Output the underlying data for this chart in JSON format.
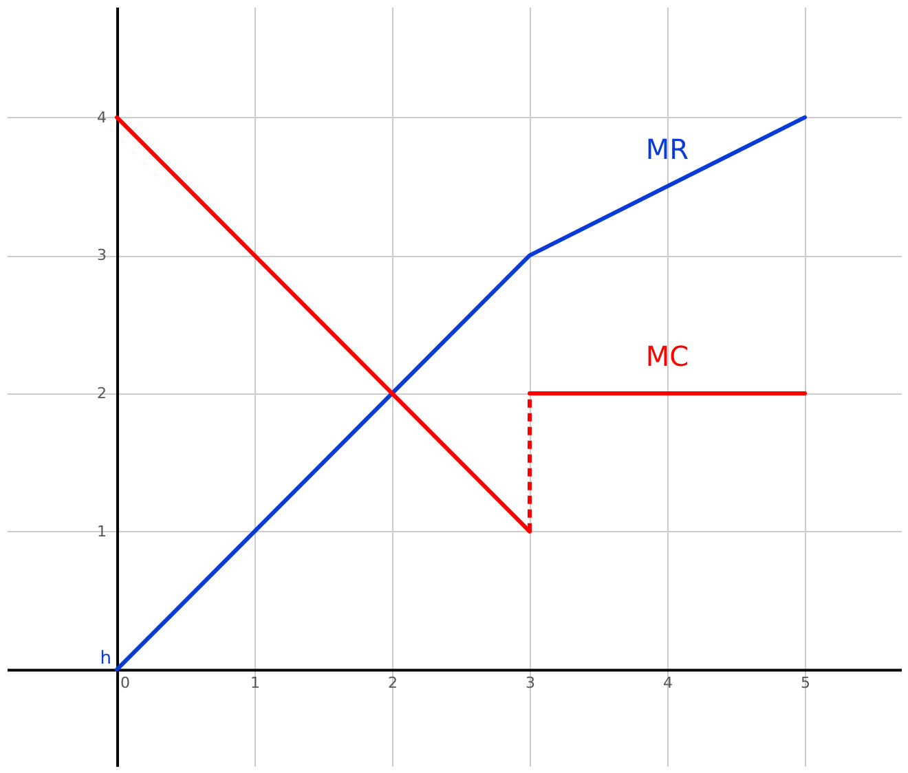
{
  "chart_data": {
    "type": "line",
    "xlim": [
      -0.8,
      5.7
    ],
    "ylim": [
      -0.7,
      4.8
    ],
    "xticks": [
      0,
      1,
      2,
      3,
      4,
      5
    ],
    "yticks": [
      1,
      2,
      3,
      4
    ],
    "grid": true,
    "marker": "none",
    "annotations": [
      {
        "text": "h",
        "x": 0,
        "y": 0
      }
    ],
    "series": [
      {
        "name": "MR",
        "color": "#0b3bd6",
        "x": [
          0,
          3,
          5
        ],
        "values": [
          0,
          3,
          4
        ]
      },
      {
        "color": "#ff0000",
        "x": [
          0,
          3
        ],
        "values": [
          4,
          1
        ]
      },
      {
        "name": "MC",
        "color": "#ff0000",
        "x": [
          3,
          5
        ],
        "values": [
          2,
          2
        ]
      },
      {
        "color": "#ff0000",
        "line_style": "dashed",
        "x": [
          3,
          3
        ],
        "values": [
          1,
          2
        ]
      }
    ]
  }
}
